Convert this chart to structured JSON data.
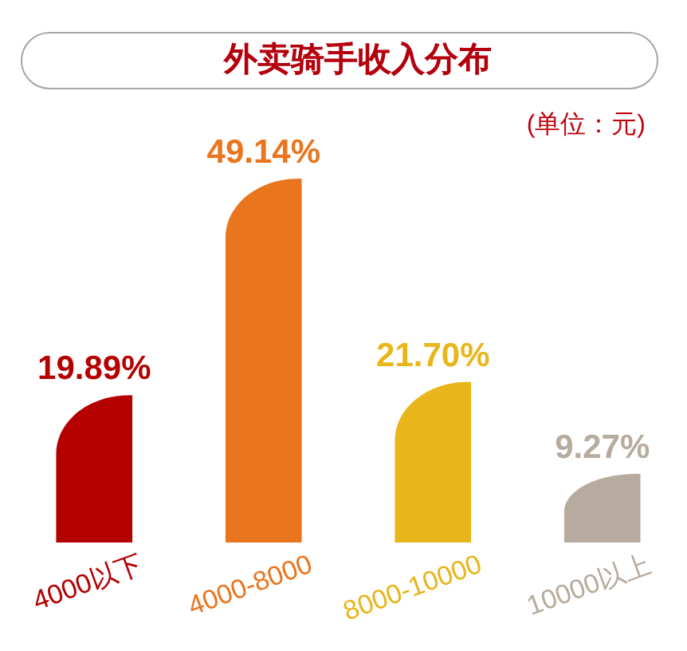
{
  "chart_data": {
    "type": "bar",
    "title": "外卖骑手收入分布",
    "subtitle": "(单位：元)",
    "categories": [
      "4000以下",
      "4000-8000",
      "8000-10000",
      "10000以上"
    ],
    "values": [
      19.89,
      49.14,
      21.7,
      9.27
    ],
    "colors": [
      "#b50000",
      "#e9761e",
      "#e8b51a",
      "#b6ab9e"
    ],
    "value_labels": [
      "19.89%",
      "49.14%",
      "21.70%",
      "9.27%"
    ],
    "tick_labels": "x"
  }
}
